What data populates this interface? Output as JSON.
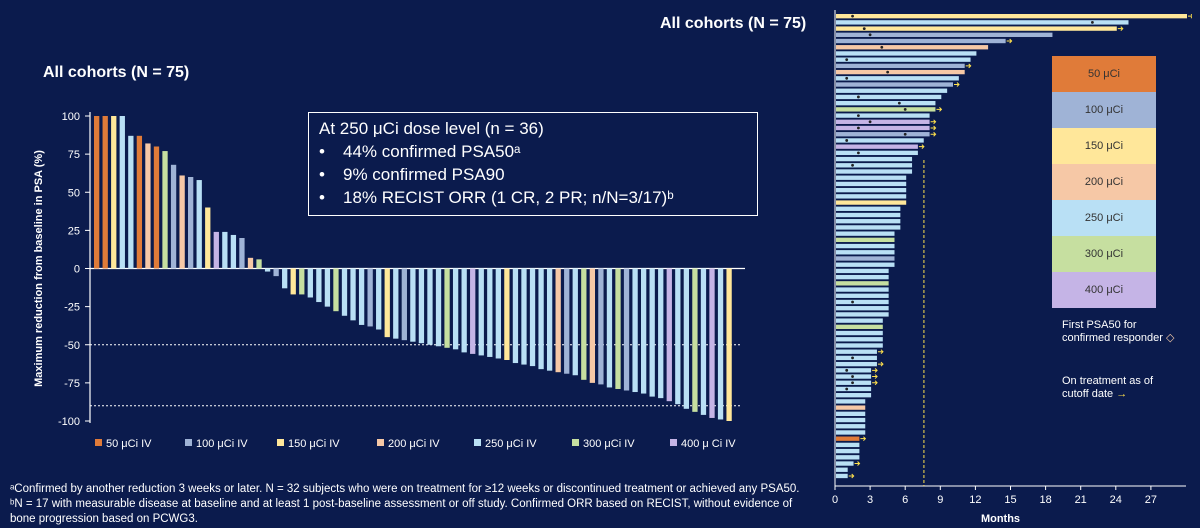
{
  "colors": {
    "background": "#0b1b4d",
    "50": "#e07b39",
    "100": "#9fb3d6",
    "150": "#ffe79a",
    "200": "#f6c8a6",
    "250": "#b9e0f5",
    "300": "#c6dfa0",
    "400": "#c5b4e6"
  },
  "left": {
    "title": "All cohorts (N = 75)",
    "box_title": "At 250 μCi dose level (n = 36)",
    "bullets": [
      {
        "sym": "•",
        "text": "44% confirmed PSA50ᵃ"
      },
      {
        "sym": "•",
        "text": "9% confirmed PSA90"
      },
      {
        "sym": "•",
        "text": "18% RECIST ORR (1 CR, 2 PR; n/N=3/17)ᵇ"
      }
    ]
  },
  "right": {
    "title": "All cohorts (N = 75)",
    "legend_first_psa50": "First PSA50 for confirmed responder",
    "legend_first_symbol": "◇",
    "legend_on_treatment": "On treatment as of cutoff date",
    "legend_on_symbol": "→"
  },
  "footnote": "ᵃConfirmed by another reduction 3 weeks or later. N = 32 subjects who were on treatment for ≥12 weeks or discontinued treatment or achieved any PSA50. ᵇN = 17 with measurable disease at baseline and at least 1 post-baseline assessment or off study. Confirmed ORR based on RECIST, without evidence of bone progression based on PCWG3.",
  "chart_data": [
    {
      "type": "bar",
      "title": "",
      "xlabel": "",
      "ylabel": "Maximum reduction from baseline in PSA (%)",
      "ylim": [
        -100,
        100
      ],
      "yticks": [
        "100",
        "75",
        "50",
        "25",
        "0",
        "-25",
        "-50",
        "-75",
        "-100"
      ],
      "reference_lines": [
        -50,
        -90
      ],
      "legend": [
        {
          "key": "50",
          "label": "50 μCi IV"
        },
        {
          "key": "100",
          "label": "100 μCi IV"
        },
        {
          "key": "150",
          "label": "150 μCi IV"
        },
        {
          "key": "200",
          "label": "200 μCi IV"
        },
        {
          "key": "250",
          "label": "250 μCi IV"
        },
        {
          "key": "300",
          "label": "300 μCi IV"
        },
        {
          "key": "400",
          "label": "400 μ Ci IV"
        }
      ],
      "bars": [
        {
          "dose": "50",
          "value": 100
        },
        {
          "dose": "50",
          "value": 100
        },
        {
          "dose": "150",
          "value": 100
        },
        {
          "dose": "250",
          "value": 100
        },
        {
          "dose": "250",
          "value": 87
        },
        {
          "dose": "50",
          "value": 87
        },
        {
          "dose": "200",
          "value": 82
        },
        {
          "dose": "50",
          "value": 80
        },
        {
          "dose": "300",
          "value": 77
        },
        {
          "dose": "100",
          "value": 68
        },
        {
          "dose": "200",
          "value": 61
        },
        {
          "dose": "100",
          "value": 60
        },
        {
          "dose": "250",
          "value": 58
        },
        {
          "dose": "150",
          "value": 40
        },
        {
          "dose": "400",
          "value": 24
        },
        {
          "dose": "250",
          "value": 24
        },
        {
          "dose": "250",
          "value": 22
        },
        {
          "dose": "100",
          "value": 20
        },
        {
          "dose": "200",
          "value": 7
        },
        {
          "dose": "300",
          "value": 6
        },
        {
          "dose": "250",
          "value": -2
        },
        {
          "dose": "100",
          "value": -5
        },
        {
          "dose": "250",
          "value": -13
        },
        {
          "dose": "150",
          "value": -17
        },
        {
          "dose": "300",
          "value": -17
        },
        {
          "dose": "250",
          "value": -19
        },
        {
          "dose": "250",
          "value": -22
        },
        {
          "dose": "250",
          "value": -25
        },
        {
          "dose": "300",
          "value": -28
        },
        {
          "dose": "250",
          "value": -31
        },
        {
          "dose": "250",
          "value": -34
        },
        {
          "dose": "250",
          "value": -37
        },
        {
          "dose": "100",
          "value": -38
        },
        {
          "dose": "250",
          "value": -40
        },
        {
          "dose": "150",
          "value": -45
        },
        {
          "dose": "250",
          "value": -46
        },
        {
          "dose": "100",
          "value": -47
        },
        {
          "dose": "250",
          "value": -48
        },
        {
          "dose": "250",
          "value": -49
        },
        {
          "dose": "250",
          "value": -50
        },
        {
          "dose": "250",
          "value": -51
        },
        {
          "dose": "300",
          "value": -52
        },
        {
          "dose": "250",
          "value": -53
        },
        {
          "dose": "250",
          "value": -55
        },
        {
          "dose": "400",
          "value": -56
        },
        {
          "dose": "250",
          "value": -57
        },
        {
          "dose": "250",
          "value": -58
        },
        {
          "dose": "250",
          "value": -59
        },
        {
          "dose": "150",
          "value": -60
        },
        {
          "dose": "250",
          "value": -62
        },
        {
          "dose": "250",
          "value": -63
        },
        {
          "dose": "250",
          "value": -64
        },
        {
          "dose": "250",
          "value": -66
        },
        {
          "dose": "250",
          "value": -67
        },
        {
          "dose": "200",
          "value": -68
        },
        {
          "dose": "100",
          "value": -69
        },
        {
          "dose": "250",
          "value": -70
        },
        {
          "dose": "300",
          "value": -73
        },
        {
          "dose": "200",
          "value": -75
        },
        {
          "dose": "100",
          "value": -76
        },
        {
          "dose": "250",
          "value": -78
        },
        {
          "dose": "300",
          "value": -79
        },
        {
          "dose": "100",
          "value": -80
        },
        {
          "dose": "250",
          "value": -81
        },
        {
          "dose": "250",
          "value": -82
        },
        {
          "dose": "250",
          "value": -84
        },
        {
          "dose": "250",
          "value": -85
        },
        {
          "dose": "400",
          "value": -87
        },
        {
          "dose": "250",
          "value": -89
        },
        {
          "dose": "250",
          "value": -92
        },
        {
          "dose": "300",
          "value": -94
        },
        {
          "dose": "250",
          "value": -96
        },
        {
          "dose": "400",
          "value": -98
        },
        {
          "dose": "250",
          "value": -99
        },
        {
          "dose": "150",
          "value": -100
        }
      ]
    },
    {
      "type": "bar",
      "orientation": "horizontal",
      "title": "All cohorts (N = 75)",
      "xlabel": "Months",
      "xlim": [
        0,
        30
      ],
      "xticks": [
        0,
        3,
        6,
        9,
        12,
        15,
        18,
        21,
        24,
        27
      ],
      "reference_x": 7.6,
      "legend": [
        {
          "key": "50",
          "label": "50 μCi"
        },
        {
          "key": "100",
          "label": "100 μCi"
        },
        {
          "key": "150",
          "label": "150 μCi"
        },
        {
          "key": "200",
          "label": "200 μCi"
        },
        {
          "key": "250",
          "label": "250 μCi"
        },
        {
          "key": "300",
          "label": "300 μCi"
        },
        {
          "key": "400",
          "label": "400 μCi"
        }
      ],
      "bars": [
        {
          "dose": "150",
          "months": 30.0,
          "psa50": 1.5,
          "ongoing": true
        },
        {
          "dose": "250",
          "months": 25.0,
          "psa50": 22
        },
        {
          "dose": "150",
          "months": 24.0,
          "psa50": 2.5,
          "ongoing": true
        },
        {
          "dose": "100",
          "months": 18.5,
          "psa50": 3
        },
        {
          "dose": "100",
          "months": 14.5,
          "ongoing": true
        },
        {
          "dose": "200",
          "months": 13.0,
          "psa50": 4
        },
        {
          "dose": "250",
          "months": 12.0
        },
        {
          "dose": "250",
          "months": 11.5,
          "psa50": 1
        },
        {
          "dose": "100",
          "months": 11.0,
          "ongoing": true
        },
        {
          "dose": "200",
          "months": 11.0,
          "psa50": 4.5
        },
        {
          "dose": "250",
          "months": 10.5,
          "psa50": 1
        },
        {
          "dose": "100",
          "months": 10.0,
          "ongoing": true
        },
        {
          "dose": "250",
          "months": 9.5
        },
        {
          "dose": "250",
          "months": 9.0,
          "psa50": 2
        },
        {
          "dose": "250",
          "months": 8.5,
          "psa50": 5.5
        },
        {
          "dose": "300",
          "months": 8.5,
          "psa50": 6,
          "ongoing": true
        },
        {
          "dose": "250",
          "months": 8.0,
          "psa50": 2
        },
        {
          "dose": "400",
          "months": 8.0,
          "psa50": 3,
          "ongoing": true
        },
        {
          "dose": "400",
          "months": 8.0,
          "psa50": 2,
          "ongoing": true
        },
        {
          "dose": "100",
          "months": 8.0,
          "psa50": 6,
          "ongoing": true
        },
        {
          "dose": "250",
          "months": 7.5,
          "psa50": 1
        },
        {
          "dose": "400",
          "months": 7.0,
          "ongoing": true
        },
        {
          "dose": "250",
          "months": 7.0,
          "psa50": 2
        },
        {
          "dose": "250",
          "months": 6.5
        },
        {
          "dose": "250",
          "months": 6.5,
          "psa50": 1.5
        },
        {
          "dose": "250",
          "months": 6.5
        },
        {
          "dose": "250",
          "months": 6.0
        },
        {
          "dose": "250",
          "months": 6.0
        },
        {
          "dose": "250",
          "months": 6.0
        },
        {
          "dose": "250",
          "months": 6.0
        },
        {
          "dose": "150",
          "months": 6.0
        },
        {
          "dose": "250",
          "months": 5.5
        },
        {
          "dose": "250",
          "months": 5.5
        },
        {
          "dose": "250",
          "months": 5.5
        },
        {
          "dose": "250",
          "months": 5.5
        },
        {
          "dose": "250",
          "months": 5.0
        },
        {
          "dose": "300",
          "months": 5.0
        },
        {
          "dose": "250",
          "months": 5.0
        },
        {
          "dose": "250",
          "months": 5.0
        },
        {
          "dose": "100",
          "months": 5.0
        },
        {
          "dose": "250",
          "months": 5.0
        },
        {
          "dose": "250",
          "months": 4.5
        },
        {
          "dose": "250",
          "months": 4.5
        },
        {
          "dose": "300",
          "months": 4.5
        },
        {
          "dose": "250",
          "months": 4.5
        },
        {
          "dose": "250",
          "months": 4.5
        },
        {
          "dose": "250",
          "months": 4.5,
          "psa50": 1.5
        },
        {
          "dose": "250",
          "months": 4.5
        },
        {
          "dose": "250",
          "months": 4.5
        },
        {
          "dose": "250",
          "months": 4.0
        },
        {
          "dose": "300",
          "months": 4.0
        },
        {
          "dose": "250",
          "months": 4.0
        },
        {
          "dose": "250",
          "months": 4.0
        },
        {
          "dose": "250",
          "months": 4.0
        },
        {
          "dose": "250",
          "months": 3.5,
          "ongoing": true
        },
        {
          "dose": "250",
          "months": 3.5,
          "psa50": 1.5
        },
        {
          "dose": "250",
          "months": 3.5,
          "ongoing": true
        },
        {
          "dose": "250",
          "months": 3.0,
          "psa50": 1,
          "ongoing": true
        },
        {
          "dose": "250",
          "months": 3.0,
          "psa50": 1.5,
          "ongoing": true
        },
        {
          "dose": "250",
          "months": 3.0,
          "psa50": 1.5,
          "ongoing": true
        },
        {
          "dose": "250",
          "months": 3.0,
          "psa50": 1
        },
        {
          "dose": "250",
          "months": 3.0
        },
        {
          "dose": "250",
          "months": 2.5
        },
        {
          "dose": "200",
          "months": 2.5
        },
        {
          "dose": "250",
          "months": 2.5
        },
        {
          "dose": "250",
          "months": 2.5
        },
        {
          "dose": "250",
          "months": 2.5
        },
        {
          "dose": "250",
          "months": 2.5
        },
        {
          "dose": "50",
          "months": 2.0,
          "ongoing": true
        },
        {
          "dose": "250",
          "months": 2.0
        },
        {
          "dose": "250",
          "months": 2.0
        },
        {
          "dose": "250",
          "months": 2.0
        },
        {
          "dose": "250",
          "months": 1.5,
          "ongoing": true
        },
        {
          "dose": "250",
          "months": 1.0
        },
        {
          "dose": "250",
          "months": 1.0,
          "ongoing": true
        }
      ]
    }
  ]
}
